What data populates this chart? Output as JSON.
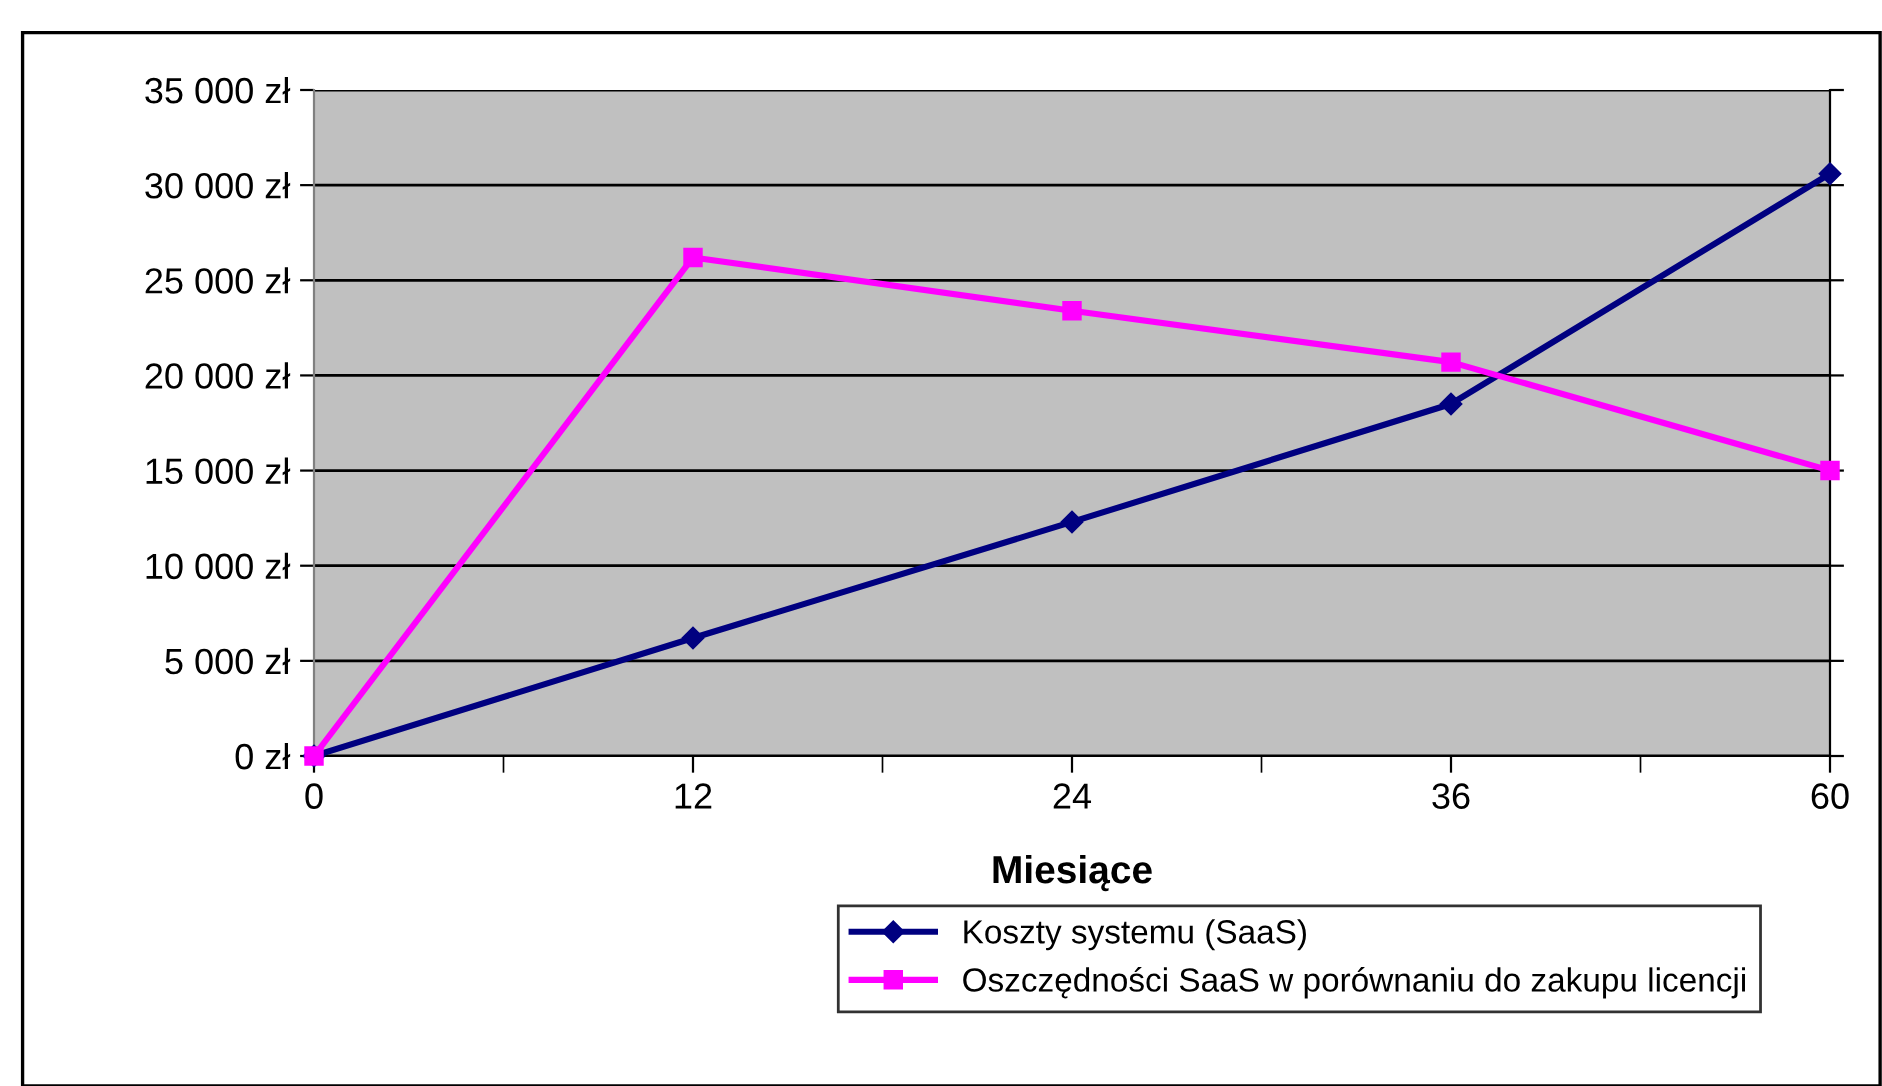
{
  "chart_data": {
    "type": "line",
    "xlabel": "Miesiące",
    "categories": [
      "0",
      "12",
      "24",
      "36",
      "60"
    ],
    "series": [
      {
        "name": "Koszty systemu (SaaS)",
        "color": "#000080",
        "marker": "diamond",
        "values": [
          0,
          6200,
          12300,
          18500,
          30600
        ]
      },
      {
        "name": "Oszczędności SaaS w porównaniu do zakupu licencji",
        "color": "#ff00ff",
        "marker": "square",
        "values": [
          0,
          26200,
          23400,
          20700,
          15000
        ]
      }
    ],
    "ylim": [
      0,
      35000
    ],
    "yticks": [
      {
        "value": 0,
        "label": "0 zł"
      },
      {
        "value": 5000,
        "label": "5 000 zł"
      },
      {
        "value": 10000,
        "label": "10 000 zł"
      },
      {
        "value": 15000,
        "label": "15 000 zł"
      },
      {
        "value": 20000,
        "label": "20 000 zł"
      },
      {
        "value": 25000,
        "label": "25 000 zł"
      },
      {
        "value": 30000,
        "label": "30 000 zł"
      },
      {
        "value": 35000,
        "label": "35 000 zł"
      }
    ],
    "grid": "y",
    "legend": "bottom"
  }
}
